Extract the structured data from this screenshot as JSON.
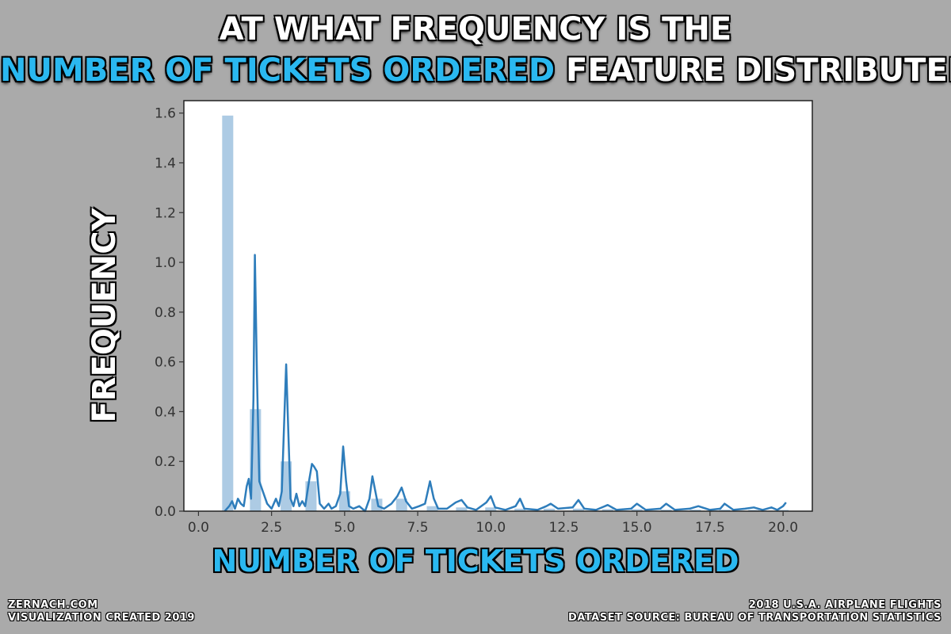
{
  "title": {
    "line1": "AT WHAT FREQUENCY IS THE",
    "line2_highlight": "NUMBER OF TICKETS ORDERED",
    "line2_rest": " FEATURE DISTRIBUTED?"
  },
  "footer": {
    "left_line1": "ZERNACH.COM",
    "left_line2": "VISUALIZATION CREATED 2019",
    "right_line1": "2018 U.S.A. AIRPLANE FLIGHTS",
    "right_line2": "DATASET SOURCE: BUREAU OF TRANSPORTATION STATISTICS"
  },
  "colors": {
    "background": "#aaaaaa",
    "highlight": "#2ab8f0",
    "bar": "#a9c8e3",
    "kde_line": "#2e7dbb"
  },
  "chart_data": {
    "type": "bar",
    "title": "",
    "xlabel": "NUMBER OF TICKETS ORDERED",
    "ylabel": "FREQUENCY",
    "xlim": [
      -0.5,
      21.0
    ],
    "ylim": [
      0,
      1.65
    ],
    "xticks": [
      0.0,
      2.5,
      5.0,
      7.5,
      10.0,
      12.5,
      15.0,
      17.5,
      20.0
    ],
    "xtick_labels": [
      "0.0",
      "2.5",
      "5.0",
      "7.5",
      "10.0",
      "12.5",
      "15.0",
      "17.5",
      "20.0"
    ],
    "yticks": [
      0.0,
      0.2,
      0.4,
      0.6,
      0.8,
      1.0,
      1.2,
      1.4,
      1.6
    ],
    "ytick_labels": [
      "0.0",
      "0.2",
      "0.4",
      "0.6",
      "0.8",
      "1.0",
      "1.2",
      "1.4",
      "1.6"
    ],
    "grid": false,
    "histogram": {
      "bin_width": 0.38,
      "bins": [
        {
          "x": 1.0,
          "value": 1.59
        },
        {
          "x": 1.95,
          "value": 0.41
        },
        {
          "x": 3.0,
          "value": 0.2
        },
        {
          "x": 3.85,
          "value": 0.12
        },
        {
          "x": 5.0,
          "value": 0.08
        },
        {
          "x": 6.1,
          "value": 0.05
        },
        {
          "x": 6.95,
          "value": 0.05
        },
        {
          "x": 8.0,
          "value": 0.02
        },
        {
          "x": 9.0,
          "value": 0.015
        },
        {
          "x": 10.0,
          "value": 0.015
        },
        {
          "x": 11.0,
          "value": 0.01
        },
        {
          "x": 12.0,
          "value": 0.01
        },
        {
          "x": 13.0,
          "value": 0.01
        },
        {
          "x": 14.0,
          "value": 0.008
        },
        {
          "x": 15.0,
          "value": 0.008
        },
        {
          "x": 16.0,
          "value": 0.006
        },
        {
          "x": 17.0,
          "value": 0.006
        },
        {
          "x": 18.0,
          "value": 0.006
        },
        {
          "x": 19.0,
          "value": 0.005
        },
        {
          "x": 20.0,
          "value": 0.005
        }
      ]
    },
    "kde": {
      "points": [
        [
          0.9,
          0.0
        ],
        [
          1.05,
          0.02
        ],
        [
          1.15,
          0.04
        ],
        [
          1.25,
          0.01
        ],
        [
          1.35,
          0.05
        ],
        [
          1.45,
          0.03
        ],
        [
          1.55,
          0.02
        ],
        [
          1.65,
          0.1
        ],
        [
          1.72,
          0.13
        ],
        [
          1.8,
          0.05
        ],
        [
          1.88,
          0.45
        ],
        [
          1.93,
          1.03
        ],
        [
          2.0,
          0.55
        ],
        [
          2.08,
          0.12
        ],
        [
          2.2,
          0.08
        ],
        [
          2.35,
          0.03
        ],
        [
          2.5,
          0.01
        ],
        [
          2.65,
          0.05
        ],
        [
          2.75,
          0.02
        ],
        [
          2.85,
          0.08
        ],
        [
          2.93,
          0.35
        ],
        [
          3.0,
          0.59
        ],
        [
          3.08,
          0.3
        ],
        [
          3.15,
          0.05
        ],
        [
          3.25,
          0.02
        ],
        [
          3.35,
          0.07
        ],
        [
          3.45,
          0.02
        ],
        [
          3.55,
          0.04
        ],
        [
          3.65,
          0.02
        ],
        [
          3.78,
          0.12
        ],
        [
          3.88,
          0.19
        ],
        [
          3.95,
          0.18
        ],
        [
          4.05,
          0.16
        ],
        [
          4.15,
          0.03
        ],
        [
          4.3,
          0.01
        ],
        [
          4.45,
          0.03
        ],
        [
          4.55,
          0.01
        ],
        [
          4.7,
          0.02
        ],
        [
          4.85,
          0.07
        ],
        [
          4.95,
          0.26
        ],
        [
          5.05,
          0.12
        ],
        [
          5.15,
          0.02
        ],
        [
          5.3,
          0.01
        ],
        [
          5.5,
          0.02
        ],
        [
          5.7,
          0.0
        ],
        [
          5.85,
          0.05
        ],
        [
          5.95,
          0.14
        ],
        [
          6.05,
          0.08
        ],
        [
          6.15,
          0.02
        ],
        [
          6.35,
          0.01
        ],
        [
          6.6,
          0.03
        ],
        [
          6.8,
          0.06
        ],
        [
          6.95,
          0.095
        ],
        [
          7.1,
          0.04
        ],
        [
          7.3,
          0.01
        ],
        [
          7.55,
          0.02
        ],
        [
          7.75,
          0.03
        ],
        [
          7.92,
          0.12
        ],
        [
          8.05,
          0.05
        ],
        [
          8.2,
          0.01
        ],
        [
          8.5,
          0.01
        ],
        [
          8.8,
          0.035
        ],
        [
          9.0,
          0.045
        ],
        [
          9.2,
          0.015
        ],
        [
          9.5,
          0.005
        ],
        [
          9.85,
          0.035
        ],
        [
          10.0,
          0.06
        ],
        [
          10.15,
          0.015
        ],
        [
          10.5,
          0.005
        ],
        [
          10.85,
          0.02
        ],
        [
          11.0,
          0.05
        ],
        [
          11.15,
          0.01
        ],
        [
          11.6,
          0.005
        ],
        [
          11.9,
          0.02
        ],
        [
          12.05,
          0.03
        ],
        [
          12.3,
          0.01
        ],
        [
          12.8,
          0.015
        ],
        [
          13.0,
          0.045
        ],
        [
          13.2,
          0.01
        ],
        [
          13.6,
          0.005
        ],
        [
          14.0,
          0.025
        ],
        [
          14.3,
          0.005
        ],
        [
          14.8,
          0.01
        ],
        [
          15.0,
          0.03
        ],
        [
          15.3,
          0.005
        ],
        [
          15.8,
          0.01
        ],
        [
          16.0,
          0.03
        ],
        [
          16.3,
          0.005
        ],
        [
          16.8,
          0.01
        ],
        [
          17.1,
          0.02
        ],
        [
          17.5,
          0.005
        ],
        [
          17.85,
          0.01
        ],
        [
          18.0,
          0.03
        ],
        [
          18.3,
          0.005
        ],
        [
          18.7,
          0.01
        ],
        [
          19.0,
          0.015
        ],
        [
          19.3,
          0.005
        ],
        [
          19.6,
          0.015
        ],
        [
          19.8,
          0.005
        ],
        [
          20.0,
          0.02
        ],
        [
          20.1,
          0.035
        ]
      ]
    }
  }
}
